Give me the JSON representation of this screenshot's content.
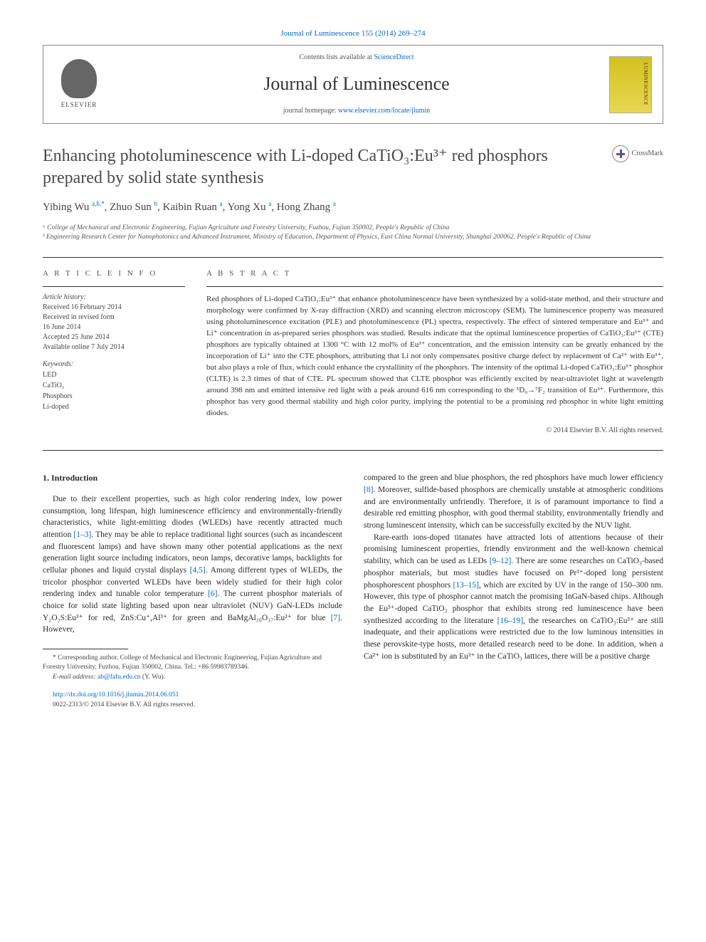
{
  "header": {
    "journal_citation": "Journal of Luminescence 155 (2014) 269–274",
    "contents_text": "Contents lists available at ",
    "contents_link": "ScienceDirect",
    "journal_name": "Journal of Luminescence",
    "homepage_text": "journal homepage: ",
    "homepage_link": "www.elsevier.com/locate/jlumin",
    "publisher": "ELSEVIER",
    "cover_text": "LUMINESCENCE"
  },
  "crossmark": "CrossMark",
  "title": "Enhancing photoluminescence with Li-doped CaTiO₃:Eu³⁺ red phosphors prepared by solid state synthesis",
  "authors_html": "Yibing Wu <sup><a>a,b,</a></sup><sup><a>*</a></sup>, Zhuo Sun <sup><a>b</a></sup>, Kaibin Ruan <sup><a>a</a></sup>, Yong Xu <sup><a>a</a></sup>, Hong Zhang <sup><a>a</a></sup>",
  "affiliations": [
    "ᵃ College of Mechanical and Electronic Engineering, Fujian Agriculture and Forestry University, Fuzhou, Fujian 350002, People's Republic of China",
    "ᵇ Engineering Research Center for Nanophotonics and Advanced Instrument, Ministry of Education, Department of Physics, East China Normal University, Shanghai 200062, People's Republic of China"
  ],
  "article_info": {
    "label": "A R T I C L E  I N F O",
    "history_head": "Article history:",
    "history": "Received 16 February 2014\nReceived in revised form\n16 June 2014\nAccepted 25 June 2014\nAvailable online 7 July 2014",
    "keywords_head": "Keywords:",
    "keywords": [
      "LED",
      "CaTiO₃",
      "Phosphors",
      "Li-doped"
    ]
  },
  "abstract": {
    "label": "A B S T R A C T",
    "text": "Red phosphors of Li-doped CaTiO₃:Eu³⁺ that enhance photoluminescence have been synthesized by a solid-state method, and their structure and morphology were confirmed by X-ray diffraction (XRD) and scanning electron microscopy (SEM). The luminescence property was measured using photoluminescence excitation (PLE) and photoluminescence (PL) spectra, respectively. The effect of sintered temperature and Eu³⁺ and Li⁺ concentration in as-prepared series phosphors was studied. Results indicate that the optimal luminescence properties of CaTiO₃:Eu³⁺ (CTE) phosphors are typically obtained at 1300 °C with 12 mol% of Eu³⁺ concentration, and the emission intensity can be greatly enhanced by the incorporation of Li⁺ into the CTE phosphors, attributing that Li not only compensates positive charge defect by replacement of Ca²⁺ with Eu³⁺, but also plays a role of flux, which could enhance the crystallinity of the phosphors. The intensity of the optimal Li-doped CaTiO₃:Eu³⁺ phosphor (CLTE) is 2.3 times of that of CTE. PL spectrum showed that CLTE phosphor was efficiently excited by near-ultraviolet light at wavelength around 398 nm and emitted intensive red light with a peak around 616 nm corresponding to the ⁵D₀→⁷F₂ transition of Eu³⁺. Furthermore, this phosphor has very good thermal stability and high color purity, implying the potential to be a promising red phosphor in white light emitting diodes.",
    "copyright": "© 2014 Elsevier B.V. All rights reserved."
  },
  "body": {
    "section_heading": "1.  Introduction",
    "col1_p1": "Due to their excellent properties, such as high color rendering index, low power consumption, long lifespan, high luminescence efficiency and environmentally-friendly characteristics, white light-emitting diodes (WLEDs) have recently attracted much attention ",
    "col1_ref1": "[1–3]",
    "col1_p1b": ". They may be able to replace traditional light sources (such as incandescent and fluorescent lamps) and have shown many other potential applications as the next generation light source including indicators, neon lamps, decorative lamps, backlights for cellular phones and liquid crystal displays ",
    "col1_ref2": "[4,5]",
    "col1_p1c": ". Among different types of WLEDs, the tricolor phosphor converted WLEDs have been widely studied for their high color rendering index and tunable color temperature ",
    "col1_ref3": "[6]",
    "col1_p1d": ". The current phosphor materials of choice for solid state lighting based upon near ultraviolet (NUV) GaN-LEDs include Y₂O₂S:Eu³⁺ for red, ZnS:Cu⁺,Al³⁺ for green and BaMgAl₁₀O₁₇:Eu²⁺ for blue ",
    "col1_ref4": "[7]",
    "col1_p1e": ". However,",
    "col2_p1a": "compared to the green and blue phosphors, the red phosphors have much lower efficiency ",
    "col2_ref1": "[8]",
    "col2_p1b": ". Moreover, sulfide-based phosphors are chemically unstable at atmospheric conditions and are environmentally unfriendly. Therefore, it is of paramount importance to find a desirable red emitting phosphor, with good thermal stability, environmentally friendly and strong luminescent intensity, which can be successfully excited by the NUV light.",
    "col2_p2a": "Rare-earth ions-doped titanates have attracted lots of attentions because of their promising luminescent properties, friendly environment and the well-known chemical stability, which can be used as LEDs ",
    "col2_ref2": "[9–12]",
    "col2_p2b": ". There are some researches on CaTiO₃-based phosphor materials, but most studies have focused on Pr³⁺-doped long persistent phosphorescent phosphors ",
    "col2_ref3": "[13–15]",
    "col2_p2c": ", which are excited by UV in the range of 150–300 nm. However, this type of phosphor cannot match the promising InGaN-based chips. Although the Eu³⁺-doped CaTiO₃ phosphor that exhibits strong red luminescence have been synthesized according to the literature ",
    "col2_ref4": "[16–19]",
    "col2_p2d": ", the researches on CaTiO₃:Eu³⁺ are still inadequate, and their applications were restricted due to the low luminous intensities in these perovskite-type hosts, more detailed research need to be done. In addition, when a Ca²⁺ ion is substituted by an Eu³⁺ in the CaTiO₃ lattices, there will be a positive charge"
  },
  "footnotes": {
    "corresponding": "* Corresponding author. College of Mechanical and Electronic Engineering, Fujian Agriculture and Forestry University, Fuzhou, Fujian 350002, China. Tel.: +86 59983789346.",
    "email_label": "E-mail address: ",
    "email": "ab@fafu.edu.cn",
    "email_name": " (Y. Wu).",
    "doi": "http://dx.doi.org/10.1016/j.jlumin.2014.06.051",
    "issn_copyright": "0022-2313/© 2014 Elsevier B.V. All rights reserved."
  },
  "colors": {
    "link": "#0066cc",
    "text": "#2a2a2a",
    "muted": "#555555",
    "cover_bg": "#e0cc40"
  }
}
